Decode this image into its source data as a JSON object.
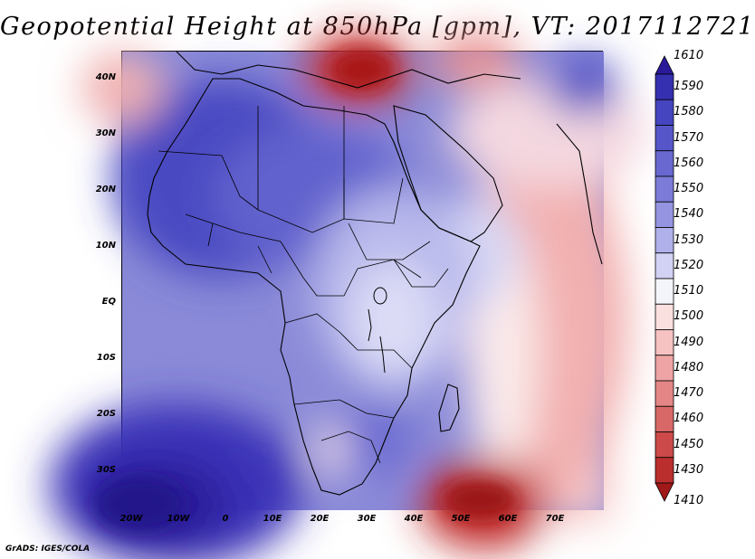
{
  "title": "Geopotential Height at 850hPa [gpm], VT: 2017112721",
  "footer": "GrADS: IGES/COLA",
  "map": {
    "lat_labels": [
      "40N",
      "30N",
      "20N",
      "10N",
      "EQ",
      "10S",
      "20S",
      "30S"
    ],
    "lon_labels": [
      "20W",
      "10W",
      "0",
      "10E",
      "20E",
      "30E",
      "40E",
      "50E",
      "60E",
      "70E"
    ]
  },
  "colorbar": {
    "labels": [
      "1610",
      "1590",
      "1580",
      "1570",
      "1560",
      "1550",
      "1540",
      "1530",
      "1520",
      "1510",
      "1500",
      "1490",
      "1480",
      "1470",
      "1460",
      "1450",
      "1430",
      "1410"
    ],
    "colors": [
      "#2a1a9a",
      "#3530b0",
      "#4545c0",
      "#5656c8",
      "#6868d0",
      "#7c7cd8",
      "#9494e0",
      "#b0b0ea",
      "#d2d2f4",
      "#f4f4fb",
      "#fbe0e0",
      "#f6c2c2",
      "#eea4a4",
      "#e48686",
      "#d86868",
      "#cc4a4a",
      "#bb2e2e",
      "#a01818"
    ]
  }
}
